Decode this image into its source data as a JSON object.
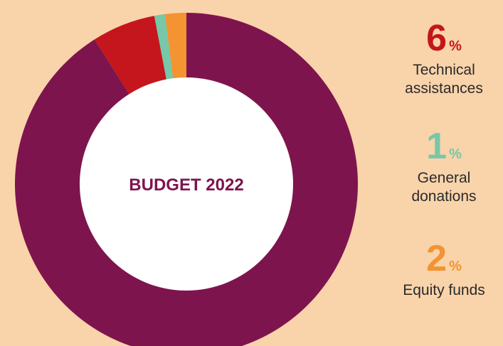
{
  "chart_data": {
    "type": "pie",
    "center_label": "BUDGET 2022",
    "slices": [
      {
        "label": "",
        "value": 91,
        "color": "#7E144D"
      },
      {
        "label": "Technical assistances",
        "value": 6,
        "color": "#C4161C"
      },
      {
        "label": "General donations",
        "value": 1,
        "color": "#77C7A9"
      },
      {
        "label": "Equity funds",
        "value": 2,
        "color": "#F39332"
      }
    ]
  },
  "legend": [
    {
      "value": "6",
      "unit": "%",
      "label": "Technical\nassistances",
      "color": "#C4161C"
    },
    {
      "value": "1",
      "unit": "%",
      "label": "General\ndonations",
      "color": "#77C7A9"
    },
    {
      "value": "2",
      "unit": "%",
      "label": "Equity funds",
      "color": "#F39332"
    }
  ]
}
